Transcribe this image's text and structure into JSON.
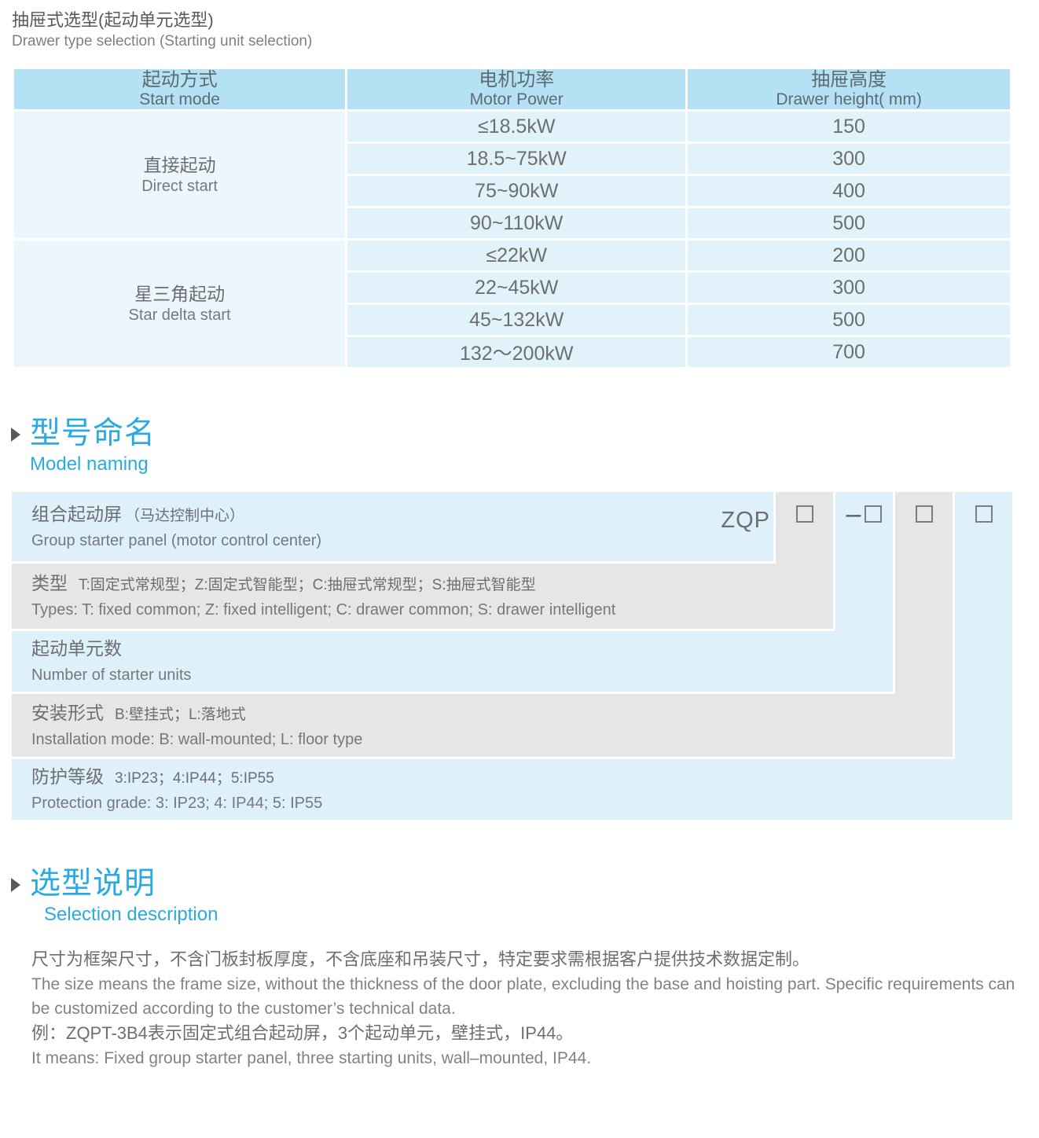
{
  "page": {
    "title_cn": "抽屉式选型(起动单元选型)",
    "title_en": "Drawer type selection (Starting unit selection)"
  },
  "selection_table": {
    "columns": [
      {
        "cn": "起动方式",
        "en": "Start mode"
      },
      {
        "cn": "电机功率",
        "en": "Motor Power"
      },
      {
        "cn": "抽屉高度",
        "en": "Drawer height( mm)"
      }
    ],
    "groups": [
      {
        "mode_cn": "直接起动",
        "mode_en": "Direct start",
        "rows": [
          {
            "power": "≤18.5kW",
            "height": "150"
          },
          {
            "power": "18.5~75kW",
            "height": "300"
          },
          {
            "power": "75~90kW",
            "height": "400"
          },
          {
            "power": "90~110kW",
            "height": "500"
          }
        ]
      },
      {
        "mode_cn": "星三角起动",
        "mode_en": "Star delta start",
        "rows": [
          {
            "power": "≤22kW",
            "height": "200"
          },
          {
            "power": "22~45kW",
            "height": "300"
          },
          {
            "power": "45~132kW",
            "height": "500"
          },
          {
            "power": "132～200kW",
            "height": "700"
          }
        ]
      }
    ]
  },
  "model_naming": {
    "title_cn": "型号命名",
    "title_en": "Model naming",
    "code": "ZQP",
    "separator": "–",
    "rows": [
      {
        "cn_main": "组合起动屏",
        "cn_sub": "（马达控制中心）",
        "en": "Group starter panel (motor control center)"
      },
      {
        "cn_main": "类型",
        "cn_sub": "T:固定式常规型；Z:固定式智能型；C:抽屉式常规型；S:抽屉式智能型",
        "en": "Types: T: fixed common; Z: fixed intelligent; C: drawer common; S: drawer intelligent"
      },
      {
        "cn_main": "起动单元数",
        "cn_sub": "",
        "en": "Number of starter units"
      },
      {
        "cn_main": "安装形式",
        "cn_sub": "B:壁挂式；L:落地式",
        "en": "Installation mode: B: wall-mounted; L: floor type"
      },
      {
        "cn_main": "防护等级",
        "cn_sub": "3:IP23；4:IP44；5:IP55",
        "en": "Protection grade:  3: IP23; 4: IP44; 5: IP55"
      }
    ]
  },
  "selection_description": {
    "title_cn": "选型说明",
    "title_en": "Selection description",
    "paragraphs": [
      {
        "lang": "cn",
        "text": "尺寸为框架尺寸，不含门板封板厚度，不含底座和吊装尺寸，特定要求需根据客户提供技术数据定制。"
      },
      {
        "lang": "en",
        "text": "The size means the frame size, without the thickness of the door plate, excluding the base and hoisting part. Specific requirements can be customized according to the customer’s technical data."
      },
      {
        "lang": "cn",
        "text": "例：ZQPT-3B4表示固定式组合起动屏，3个起动单元，壁挂式，IP44。"
      },
      {
        "lang": "en",
        "text": "It means: Fixed group starter panel, three starting units, wall–mounted, IP44."
      }
    ]
  },
  "colors": {
    "header_blue": "#b5e1f5",
    "cell_blue": "#e2f2fb",
    "group_cell_blue": "#ecf7fd",
    "diagram_blue": "#def0fa",
    "diagram_gray": "#e5e6e6",
    "accent_cyan": "#29abe2",
    "text_dark": "#6d6e71",
    "text_light": "#808285"
  }
}
